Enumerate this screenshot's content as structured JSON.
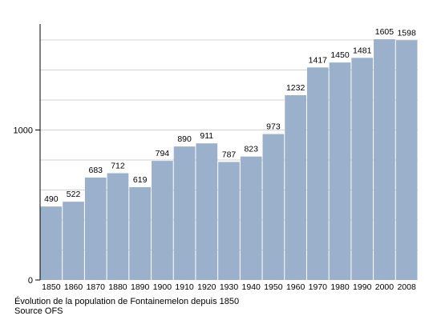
{
  "chart_data": {
    "type": "bar",
    "categories": [
      "1850",
      "1860",
      "1870",
      "1880",
      "1890",
      "1900",
      "1910",
      "1920",
      "1930",
      "1940",
      "1950",
      "1960",
      "1970",
      "1980",
      "1990",
      "2000",
      "2008"
    ],
    "values": [
      490,
      522,
      683,
      712,
      619,
      794,
      890,
      911,
      787,
      823,
      973,
      1232,
      1417,
      1450,
      1481,
      1605,
      1598
    ],
    "ylim": [
      0,
      1700
    ],
    "yticks_labeled": [
      0,
      1000
    ],
    "grid": true,
    "bar_color": "#9bb1cb"
  },
  "caption": {
    "line1": "Évolution de la population de Fontainemelon depuis 1850",
    "line2": "Source OFS"
  }
}
